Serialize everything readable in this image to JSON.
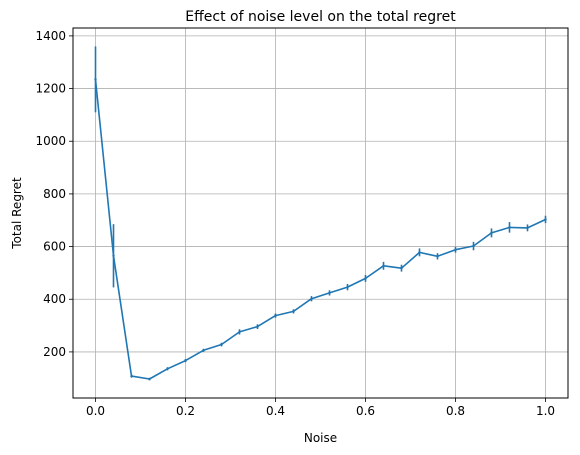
{
  "chart_data": {
    "type": "line",
    "title": "Effect of noise level on the total regret",
    "xlabel": "Noise",
    "ylabel": "Total Regret",
    "xlim": [
      -0.05,
      1.05
    ],
    "ylim": [
      25,
      1430
    ],
    "xticks": [
      0.0,
      0.2,
      0.4,
      0.6,
      0.8,
      1.0
    ],
    "xtick_labels": [
      "0.0",
      "0.2",
      "0.4",
      "0.6",
      "0.8",
      "1.0"
    ],
    "yticks": [
      200,
      400,
      600,
      800,
      1000,
      1200,
      1400
    ],
    "ytick_labels": [
      "200",
      "400",
      "600",
      "800",
      "1000",
      "1200",
      "1400"
    ],
    "grid": true,
    "line_color": "#1f77b4",
    "series": [
      {
        "x": [
          0.0,
          0.04,
          0.08,
          0.12,
          0.16,
          0.2,
          0.24,
          0.28,
          0.32,
          0.36,
          0.4,
          0.44,
          0.48,
          0.52,
          0.56,
          0.6,
          0.64,
          0.68,
          0.72,
          0.76,
          0.8,
          0.84,
          0.88,
          0.92,
          0.96,
          1.0
        ],
        "y": [
          1235,
          565,
          108,
          97,
          136,
          167,
          206,
          228,
          276,
          296,
          338,
          354,
          402,
          424,
          446,
          479,
          527,
          518,
          578,
          563,
          588,
          602,
          652,
          673,
          671,
          703
        ],
        "yerr": [
          125,
          120,
          6,
          5,
          6,
          6,
          6,
          7,
          10,
          9,
          8,
          8,
          10,
          10,
          12,
          13,
          15,
          13,
          15,
          12,
          11,
          16,
          17,
          20,
          13,
          14
        ]
      }
    ]
  }
}
